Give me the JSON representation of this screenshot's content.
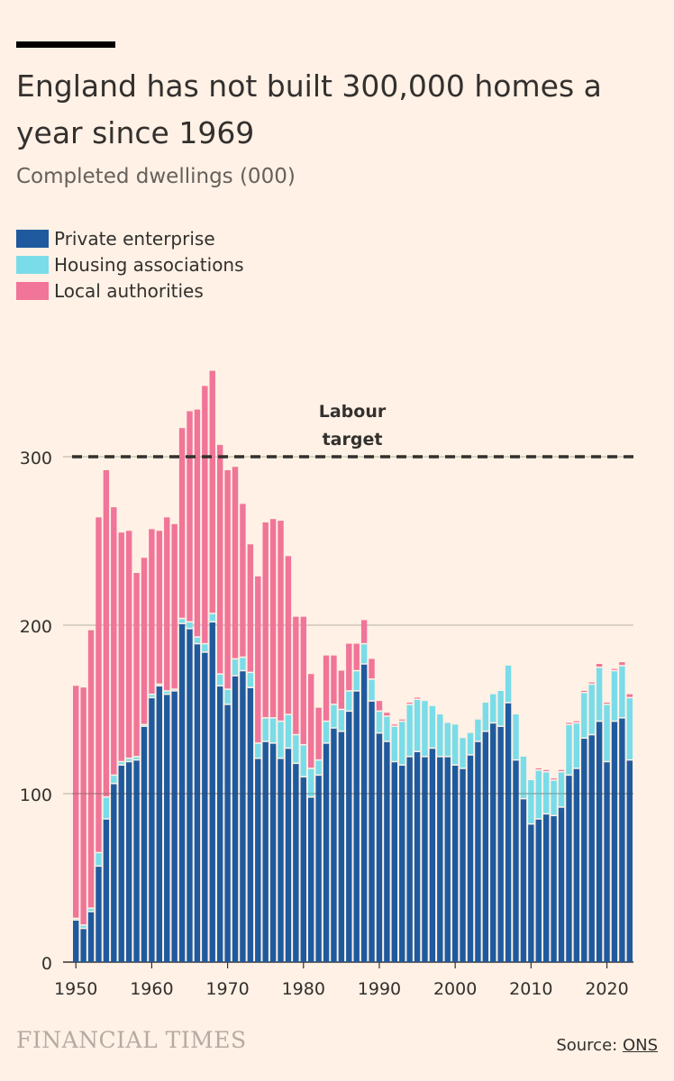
{
  "header": {
    "title": "England has not built 300,000 homes a year since 1969",
    "subtitle": "Completed dwellings (000)"
  },
  "legend": [
    {
      "label": "Private enterprise",
      "color": "#1F5A9E"
    },
    {
      "label": "Housing associations",
      "color": "#7ADCE8"
    },
    {
      "label": "Local authorities",
      "color": "#F07598"
    }
  ],
  "footer": {
    "brand": "FINANCIAL TIMES",
    "source_prefix": "Source: ",
    "source_link": "ONS"
  },
  "chart_data": {
    "type": "bar",
    "stacked": true,
    "x": [
      1950,
      1951,
      1952,
      1953,
      1954,
      1955,
      1956,
      1957,
      1958,
      1959,
      1960,
      1961,
      1962,
      1963,
      1964,
      1965,
      1966,
      1967,
      1968,
      1969,
      1970,
      1971,
      1972,
      1973,
      1974,
      1975,
      1976,
      1977,
      1978,
      1979,
      1980,
      1981,
      1982,
      1983,
      1984,
      1985,
      1986,
      1987,
      1988,
      1989,
      1990,
      1991,
      1992,
      1993,
      1994,
      1995,
      1996,
      1997,
      1998,
      1999,
      2000,
      2001,
      2002,
      2003,
      2004,
      2005,
      2006,
      2007,
      2008,
      2009,
      2010,
      2011,
      2012,
      2013,
      2014,
      2015,
      2016,
      2017,
      2018,
      2019,
      2020,
      2021,
      2022,
      2023
    ],
    "series": [
      {
        "name": "Private enterprise",
        "color": "#1F5A9E",
        "values": [
          25,
          20,
          30,
          57,
          85,
          106,
          117,
          119,
          120,
          140,
          157,
          164,
          159,
          161,
          201,
          198,
          189,
          184,
          202,
          164,
          153,
          170,
          173,
          163,
          121,
          131,
          130,
          121,
          127,
          118,
          110,
          98,
          111,
          130,
          139,
          137,
          149,
          161,
          177,
          155,
          136,
          131,
          119,
          117,
          122,
          125,
          122,
          127,
          122,
          122,
          117,
          115,
          123,
          131,
          137,
          142,
          140,
          154,
          120,
          97,
          82,
          85,
          88,
          87,
          92,
          111,
          115,
          133,
          135,
          143,
          119,
          143,
          145,
          120
        ]
      },
      {
        "name": "Housing associations",
        "color": "#7ADCE8",
        "values": [
          1,
          2,
          2,
          8,
          13,
          5,
          2,
          2,
          2,
          1,
          2,
          1,
          2,
          1,
          3,
          4,
          4,
          5,
          5,
          7,
          9,
          10,
          8,
          9,
          9,
          14,
          15,
          22,
          20,
          17,
          19,
          17,
          9,
          13,
          14,
          13,
          12,
          12,
          12,
          13,
          13,
          15,
          21,
          26,
          31,
          31,
          33,
          25,
          25,
          20,
          24,
          18,
          13,
          13,
          17,
          17,
          21,
          22,
          27,
          25,
          26,
          29,
          25,
          21,
          21,
          30,
          27,
          27,
          30,
          32,
          34,
          30,
          31,
          37
        ]
      },
      {
        "name": "Local authorities",
        "color": "#F07598",
        "values": [
          138,
          141,
          165,
          199,
          194,
          159,
          136,
          135,
          109,
          99,
          98,
          91,
          103,
          98,
          113,
          125,
          135,
          153,
          144,
          136,
          130,
          114,
          91,
          76,
          99,
          116,
          118,
          119,
          94,
          70,
          76,
          56,
          31,
          39,
          29,
          23,
          28,
          16,
          14,
          12,
          6,
          2,
          1,
          1,
          1,
          1,
          0,
          0,
          0,
          0,
          0,
          0,
          0,
          0,
          0,
          0,
          0,
          0,
          0,
          0,
          0,
          1,
          1,
          1,
          1,
          1,
          1,
          1,
          1,
          2,
          1,
          1,
          2,
          2
        ]
      }
    ],
    "ylim": [
      0,
      350
    ],
    "yticks": [
      0,
      100,
      200,
      300
    ],
    "xticks": [
      1950,
      1960,
      1970,
      1980,
      1990,
      2000,
      2010,
      2020
    ],
    "reference_line": {
      "value": 300,
      "label_line1": "Labour",
      "label_line2": "target"
    },
    "legend_position": "top-left",
    "grid": "horizontal"
  }
}
